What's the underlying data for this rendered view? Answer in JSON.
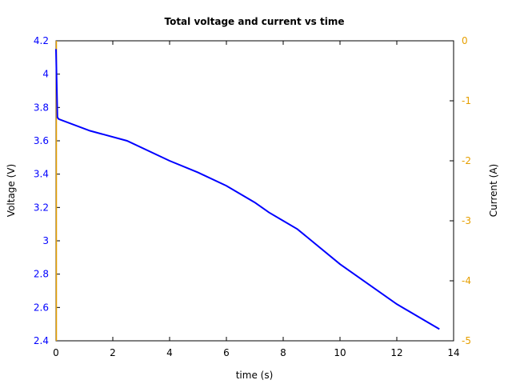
{
  "chart_data": {
    "type": "line",
    "title": "Total voltage and current vs time",
    "xlabel": "time (s)",
    "ylabel": "Voltage (V)",
    "y2label": "Current (A)",
    "xlim": [
      0,
      14
    ],
    "ylim": [
      2.4,
      4.2
    ],
    "y2lim": [
      -5,
      0
    ],
    "xticks": [
      "0",
      "2",
      "4",
      "6",
      "8",
      "10",
      "12",
      "14"
    ],
    "yticks": [
      "2.4",
      "2.6",
      "2.8",
      "3",
      "3.2",
      "3.4",
      "3.6",
      "3.8",
      "4",
      "4.2"
    ],
    "y2ticks": [
      "0",
      "-1",
      "-2",
      "-3",
      "-4",
      "-5"
    ],
    "grid": false,
    "legend": "none",
    "series": [
      {
        "name": "Voltage",
        "axis": "left",
        "color": "#0000ff",
        "x": [
          0,
          0.05,
          0.1,
          1.2,
          2.5,
          4,
          5,
          6,
          7,
          7.5,
          8,
          8.5,
          9,
          10,
          11,
          12,
          13,
          13.5
        ],
        "values": [
          4.15,
          3.74,
          3.73,
          3.66,
          3.6,
          3.48,
          3.41,
          3.33,
          3.23,
          3.17,
          3.12,
          3.07,
          3.0,
          2.86,
          2.74,
          2.62,
          2.52,
          2.47
        ]
      },
      {
        "name": "Current",
        "axis": "right",
        "color": "#e69f00",
        "x": [
          0,
          0
        ],
        "values": [
          0,
          -5
        ]
      }
    ]
  }
}
